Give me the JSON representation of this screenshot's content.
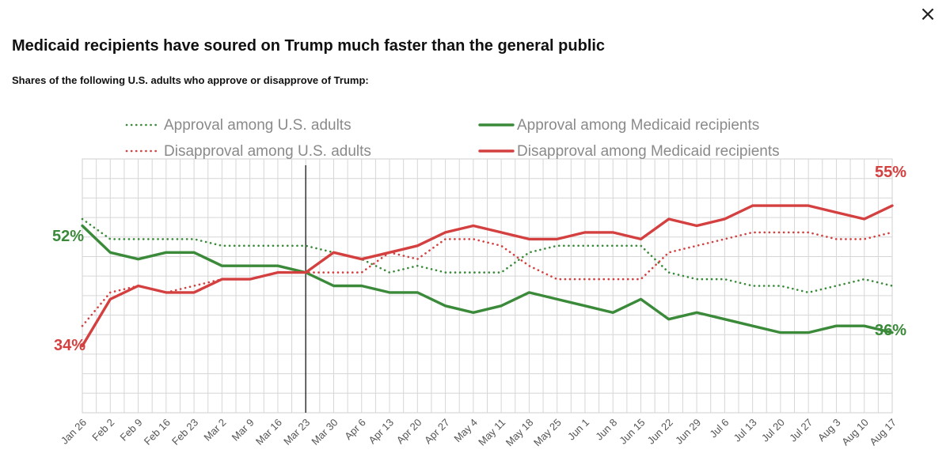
{
  "close_icon": "×",
  "chart_data": {
    "type": "line",
    "title": "Medicaid recipients have soured on Trump much faster than the general public",
    "subtitle": "Shares of the following U.S. adults who approve or disapprove of Trump:",
    "xlabel": "",
    "ylabel": "",
    "ylim": [
      24,
      62
    ],
    "grid": true,
    "legend_position": "top",
    "reference_line_at": "Mar 23",
    "categories": [
      "Jan 26",
      "Feb 2",
      "Feb 9",
      "Feb 16",
      "Feb 23",
      "Mar 2",
      "Mar 9",
      "Mar 16",
      "Mar 23",
      "Mar 30",
      "Apr 6",
      "Apr 13",
      "Apr 20",
      "Apr 27",
      "May 4",
      "May 11",
      "May 18",
      "May 25",
      "Jun 1",
      "Jun 8",
      "Jun 15",
      "Jun 22",
      "Jun 29",
      "Jul 6",
      "Jul 13",
      "Jul 20",
      "Jul 27",
      "Aug 3",
      "Aug 10",
      "Aug 17"
    ],
    "series": [
      {
        "name": "Approval among U.S. adults",
        "color": "#3a8a3a",
        "style": "dotted",
        "values": [
          53,
          50,
          50,
          50,
          50,
          49,
          49,
          49,
          49,
          48,
          47,
          45,
          46,
          45,
          45,
          45,
          48,
          49,
          49,
          49,
          49,
          45,
          44,
          44,
          43,
          43,
          42,
          43,
          44,
          43
        ]
      },
      {
        "name": "Approval among Medicaid recipients",
        "color": "#3a8a3a",
        "style": "solid",
        "values": [
          52,
          48,
          47,
          48,
          48,
          46,
          46,
          46,
          45,
          43,
          43,
          42,
          42,
          40,
          39,
          40,
          42,
          41,
          40,
          39,
          41,
          38,
          39,
          38,
          37,
          36,
          36,
          37,
          37,
          36
        ]
      },
      {
        "name": "Disapproval among U.S. adults",
        "color": "#d44040",
        "style": "dotted",
        "values": [
          37,
          42,
          43,
          42,
          43,
          44,
          44,
          45,
          45,
          45,
          45,
          48,
          47,
          50,
          50,
          49,
          46,
          44,
          44,
          44,
          44,
          48,
          49,
          50,
          51,
          51,
          51,
          50,
          50,
          51
        ]
      },
      {
        "name": "Disapproval among Medicaid recipients",
        "color": "#d44040",
        "style": "solid",
        "values": [
          34,
          41,
          43,
          42,
          42,
          44,
          44,
          45,
          45,
          48,
          47,
          48,
          49,
          51,
          52,
          51,
          50,
          50,
          51,
          51,
          50,
          53,
          52,
          53,
          55,
          55,
          55,
          54,
          53,
          55
        ]
      }
    ],
    "end_labels": {
      "left_approval": "52%",
      "left_disapproval": "34%",
      "right_approval": "36%",
      "right_disapproval": "55%"
    }
  }
}
